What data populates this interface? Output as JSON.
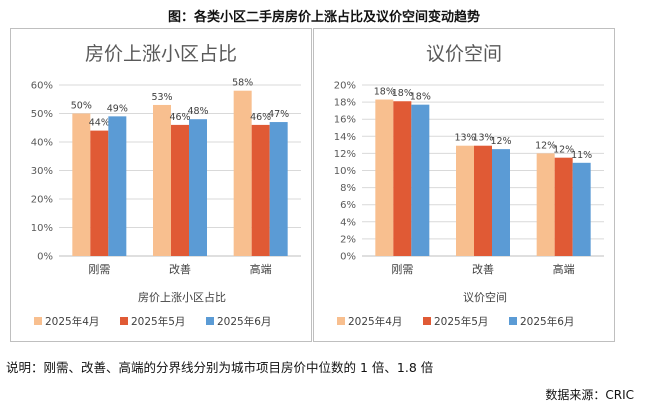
{
  "figure_title": "图：各类小区二手房房价上涨占比及议价空间变动趋势",
  "colors": {
    "2025年4月": "#F8BF8F",
    "2025年5月": "#E05A35",
    "2025年6月": "#5B9BD5"
  },
  "chart_data": [
    {
      "type": "bar",
      "title": "房价上涨小区占比",
      "xlabel": "房价上涨小区占比",
      "ylabel": "",
      "categories": [
        "刚需",
        "改善",
        "高端"
      ],
      "ylim": [
        0,
        60
      ],
      "yticks": [
        "0%",
        "10%",
        "20%",
        "30%",
        "40%",
        "50%",
        "60%"
      ],
      "ytick_values": [
        0,
        10,
        20,
        30,
        40,
        50,
        60
      ],
      "series": [
        {
          "name": "2025年4月",
          "values": [
            50,
            53,
            58
          ],
          "labels": [
            "50%",
            "53%",
            "58%"
          ]
        },
        {
          "name": "2025年5月",
          "values": [
            44,
            46,
            46
          ],
          "labels": [
            "44%",
            "46%",
            "46%"
          ]
        },
        {
          "name": "2025年6月",
          "values": [
            49,
            48,
            47
          ],
          "labels": [
            "49%",
            "48%",
            "47%"
          ]
        }
      ],
      "legend": "bottom"
    },
    {
      "type": "bar",
      "title": "议价空间",
      "xlabel": "议价空间",
      "ylabel": "",
      "categories": [
        "刚需",
        "改善",
        "高端"
      ],
      "ylim": [
        0,
        20
      ],
      "yticks": [
        "0%",
        "2%",
        "4%",
        "6%",
        "8%",
        "10%",
        "12%",
        "14%",
        "16%",
        "18%",
        "20%"
      ],
      "ytick_values": [
        0,
        2,
        4,
        6,
        8,
        10,
        12,
        14,
        16,
        18,
        20
      ],
      "series": [
        {
          "name": "2025年4月",
          "values": [
            18.3,
            12.9,
            12.0
          ],
          "labels": [
            "18%",
            "13%",
            "12%"
          ]
        },
        {
          "name": "2025年5月",
          "values": [
            18.1,
            12.9,
            11.5
          ],
          "labels": [
            "18%",
            "13%",
            "12%"
          ]
        },
        {
          "name": "2025年6月",
          "values": [
            17.7,
            12.5,
            10.9
          ],
          "labels": [
            "18%",
            "12%",
            "11%"
          ]
        }
      ],
      "legend": "bottom"
    }
  ],
  "note": "说明：刚需、改善、高端的分界线分别为城市项目房价中位数的 1 倍、1.8 倍",
  "source": "数据来源：CRIC"
}
